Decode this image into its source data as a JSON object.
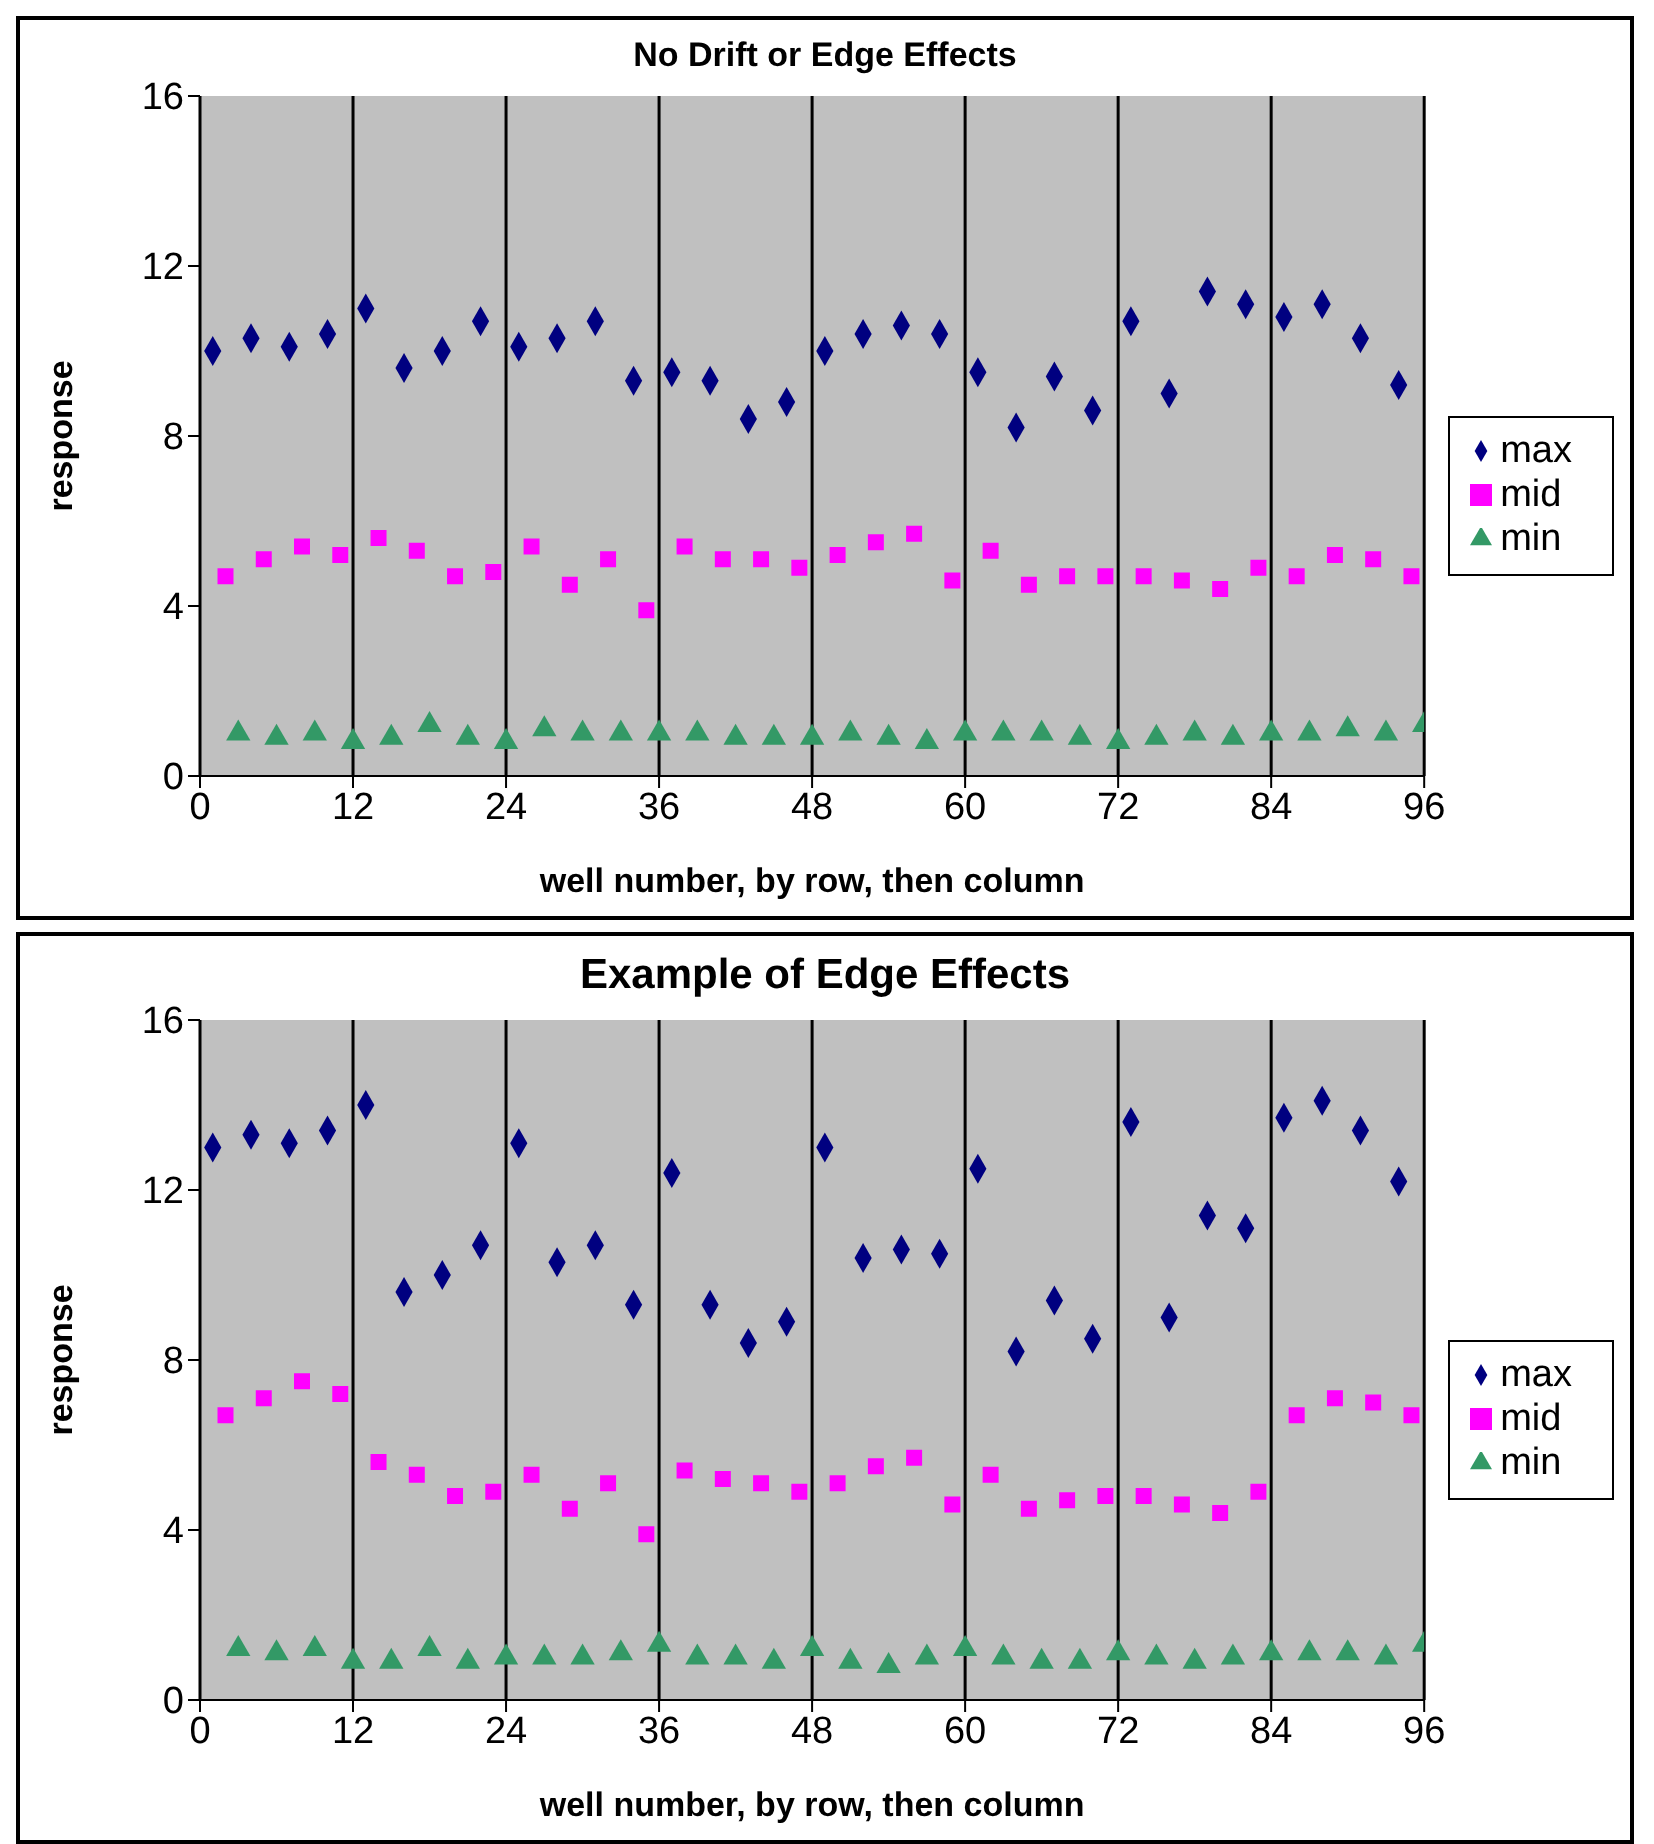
{
  "chart_data": [
    {
      "type": "scatter",
      "title": "No Drift or Edge Effects",
      "xlabel": "well number, by row, then column",
      "ylabel": "response",
      "xlim": [
        0,
        96
      ],
      "xticks": [
        0,
        12,
        24,
        36,
        48,
        60,
        72,
        84,
        96
      ],
      "ylim": [
        0,
        16
      ],
      "yticks": [
        0,
        4,
        8,
        12,
        16
      ],
      "grid": "x",
      "legend": "right",
      "series": [
        {
          "name": "max",
          "color": "#000080",
          "marker": "diamond",
          "x": [
            1,
            4,
            7,
            10,
            13,
            16,
            19,
            22,
            25,
            28,
            31,
            34,
            37,
            40,
            43,
            46,
            49,
            52,
            55,
            58,
            61,
            64,
            67,
            70,
            73,
            76,
            79,
            82,
            85,
            88,
            91,
            94
          ],
          "values": [
            10.0,
            10.3,
            10.1,
            10.4,
            11.0,
            9.6,
            10.0,
            10.7,
            10.1,
            10.3,
            10.7,
            9.3,
            9.5,
            9.3,
            8.4,
            8.8,
            10.0,
            10.4,
            10.6,
            10.4,
            9.5,
            8.2,
            9.4,
            8.6,
            10.7,
            9.0,
            11.4,
            11.1,
            10.8,
            11.1,
            10.3,
            9.2
          ]
        },
        {
          "name": "mid",
          "color": "#ff00ff",
          "marker": "square",
          "x": [
            2,
            5,
            8,
            11,
            14,
            17,
            20,
            23,
            26,
            29,
            32,
            35,
            38,
            41,
            44,
            47,
            50,
            53,
            56,
            59,
            62,
            65,
            68,
            71,
            74,
            77,
            80,
            83,
            86,
            89,
            92,
            95
          ],
          "values": [
            4.7,
            5.1,
            5.4,
            5.2,
            5.6,
            5.3,
            4.7,
            4.8,
            5.4,
            4.5,
            5.1,
            3.9,
            5.4,
            5.1,
            5.1,
            4.9,
            5.2,
            5.5,
            5.7,
            4.6,
            5.3,
            4.5,
            4.7,
            4.7,
            4.7,
            4.6,
            4.4,
            4.9,
            4.7,
            5.2,
            5.1,
            4.7
          ]
        },
        {
          "name": "min",
          "color": "#339966",
          "marker": "triangle",
          "x": [
            3,
            6,
            9,
            12,
            15,
            18,
            21,
            24,
            27,
            30,
            33,
            36,
            39,
            42,
            45,
            48,
            51,
            54,
            57,
            60,
            63,
            66,
            69,
            72,
            75,
            78,
            81,
            84,
            87,
            90,
            93,
            96
          ],
          "values": [
            1.0,
            0.9,
            1.0,
            0.8,
            0.9,
            1.2,
            0.9,
            0.8,
            1.1,
            1.0,
            1.0,
            1.0,
            1.0,
            0.9,
            0.9,
            0.9,
            1.0,
            0.9,
            0.8,
            1.0,
            1.0,
            1.0,
            0.9,
            0.8,
            0.9,
            1.0,
            0.9,
            1.0,
            1.0,
            1.1,
            1.0,
            1.2
          ]
        }
      ]
    },
    {
      "type": "scatter",
      "title": "Example of Edge Effects",
      "xlabel": "well number, by row, then column",
      "ylabel": "response",
      "xlim": [
        0,
        96
      ],
      "xticks": [
        0,
        12,
        24,
        36,
        48,
        60,
        72,
        84,
        96
      ],
      "ylim": [
        0,
        16
      ],
      "yticks": [
        0,
        4,
        8,
        12,
        16
      ],
      "grid": "x",
      "legend": "right",
      "series": [
        {
          "name": "max",
          "color": "#000080",
          "marker": "diamond",
          "x": [
            1,
            4,
            7,
            10,
            13,
            16,
            19,
            22,
            25,
            28,
            31,
            34,
            37,
            40,
            43,
            46,
            49,
            52,
            55,
            58,
            61,
            64,
            67,
            70,
            73,
            76,
            79,
            82,
            85,
            88,
            91,
            94
          ],
          "values": [
            13.0,
            13.3,
            13.1,
            13.4,
            14.0,
            9.6,
            10.0,
            10.7,
            13.1,
            10.3,
            10.7,
            9.3,
            12.4,
            9.3,
            8.4,
            8.9,
            13.0,
            10.4,
            10.6,
            10.5,
            12.5,
            8.2,
            9.4,
            8.5,
            13.6,
            9.0,
            11.4,
            11.1,
            13.7,
            14.1,
            13.4,
            12.2
          ]
        },
        {
          "name": "mid",
          "color": "#ff00ff",
          "marker": "square",
          "x": [
            2,
            5,
            8,
            11,
            14,
            17,
            20,
            23,
            26,
            29,
            32,
            35,
            38,
            41,
            44,
            47,
            50,
            53,
            56,
            59,
            62,
            65,
            68,
            71,
            74,
            77,
            80,
            83,
            86,
            89,
            92,
            95
          ],
          "values": [
            6.7,
            7.1,
            7.5,
            7.2,
            5.6,
            5.3,
            4.8,
            4.9,
            5.3,
            4.5,
            5.1,
            3.9,
            5.4,
            5.2,
            5.1,
            4.9,
            5.1,
            5.5,
            5.7,
            4.6,
            5.3,
            4.5,
            4.7,
            4.8,
            4.8,
            4.6,
            4.4,
            4.9,
            6.7,
            7.1,
            7.0,
            6.7
          ]
        },
        {
          "name": "min",
          "color": "#339966",
          "marker": "triangle",
          "x": [
            3,
            6,
            9,
            12,
            15,
            18,
            21,
            24,
            27,
            30,
            33,
            36,
            39,
            42,
            45,
            48,
            51,
            54,
            57,
            60,
            63,
            66,
            69,
            72,
            75,
            78,
            81,
            84,
            87,
            90,
            93,
            96
          ],
          "values": [
            1.2,
            1.1,
            1.2,
            0.9,
            0.9,
            1.2,
            0.9,
            1.0,
            1.0,
            1.0,
            1.1,
            1.3,
            1.0,
            1.0,
            0.9,
            1.2,
            0.9,
            0.8,
            1.0,
            1.2,
            1.0,
            0.9,
            0.9,
            1.1,
            1.0,
            0.9,
            1.0,
            1.1,
            1.1,
            1.1,
            1.0,
            1.3
          ]
        }
      ]
    }
  ]
}
